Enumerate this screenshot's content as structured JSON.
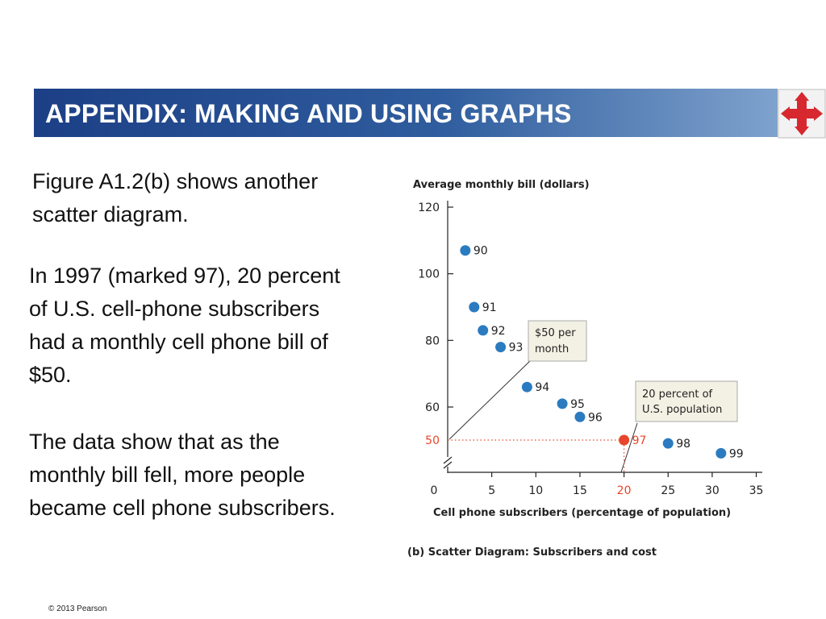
{
  "header": {
    "title": "APPENDIX: MAKING AND USING GRAPHS",
    "nav_icon": "four-arrows-navigation-icon"
  },
  "body": {
    "p1": "Figure A1.2(b) shows another scatter diagram.",
    "p2": "In 1997 (marked 97), 20 percent of U.S. cell-phone subscribers had a monthly cell phone bill of $50.",
    "p3": "The data show that as the monthly bill fell, more people became cell phone subscribers."
  },
  "footer": {
    "copyright": "© 2013 Pearson"
  },
  "colors": {
    "banner_start": "#1c3f86",
    "banner_end": "#7fa2cd",
    "point": "#2b7bc0",
    "highlight": "#e8462a"
  },
  "chart_data": {
    "type": "scatter",
    "ylabel": "Average monthly bill (dollars)",
    "xlabel": "Cell phone subscribers (percentage of population)",
    "caption": "(b)  Scatter Diagram:  Subscribers and cost",
    "xlim": [
      0,
      35
    ],
    "ylim": [
      50,
      120
    ],
    "x_ticks": [
      "0",
      "5",
      "10",
      "15",
      "20",
      "25",
      "30",
      "35"
    ],
    "y_ticks": [
      "50",
      "60",
      "80",
      "100",
      "120"
    ],
    "points": [
      {
        "label": "90",
        "x": 2,
        "y": 107
      },
      {
        "label": "91",
        "x": 3,
        "y": 90
      },
      {
        "label": "92",
        "x": 4,
        "y": 83
      },
      {
        "label": "93",
        "x": 6,
        "y": 78
      },
      {
        "label": "94",
        "x": 9,
        "y": 66
      },
      {
        "label": "95",
        "x": 13,
        "y": 61
      },
      {
        "label": "96",
        "x": 15,
        "y": 57
      },
      {
        "label": "97",
        "x": 20,
        "y": 50,
        "highlight": true
      },
      {
        "label": "98",
        "x": 25,
        "y": 49
      },
      {
        "label": "99",
        "x": 31,
        "y": 46
      }
    ],
    "annotations": [
      {
        "text": [
          "$50 per",
          "month"
        ]
      },
      {
        "text": [
          "20 percent of",
          "U.S. population"
        ]
      }
    ]
  }
}
